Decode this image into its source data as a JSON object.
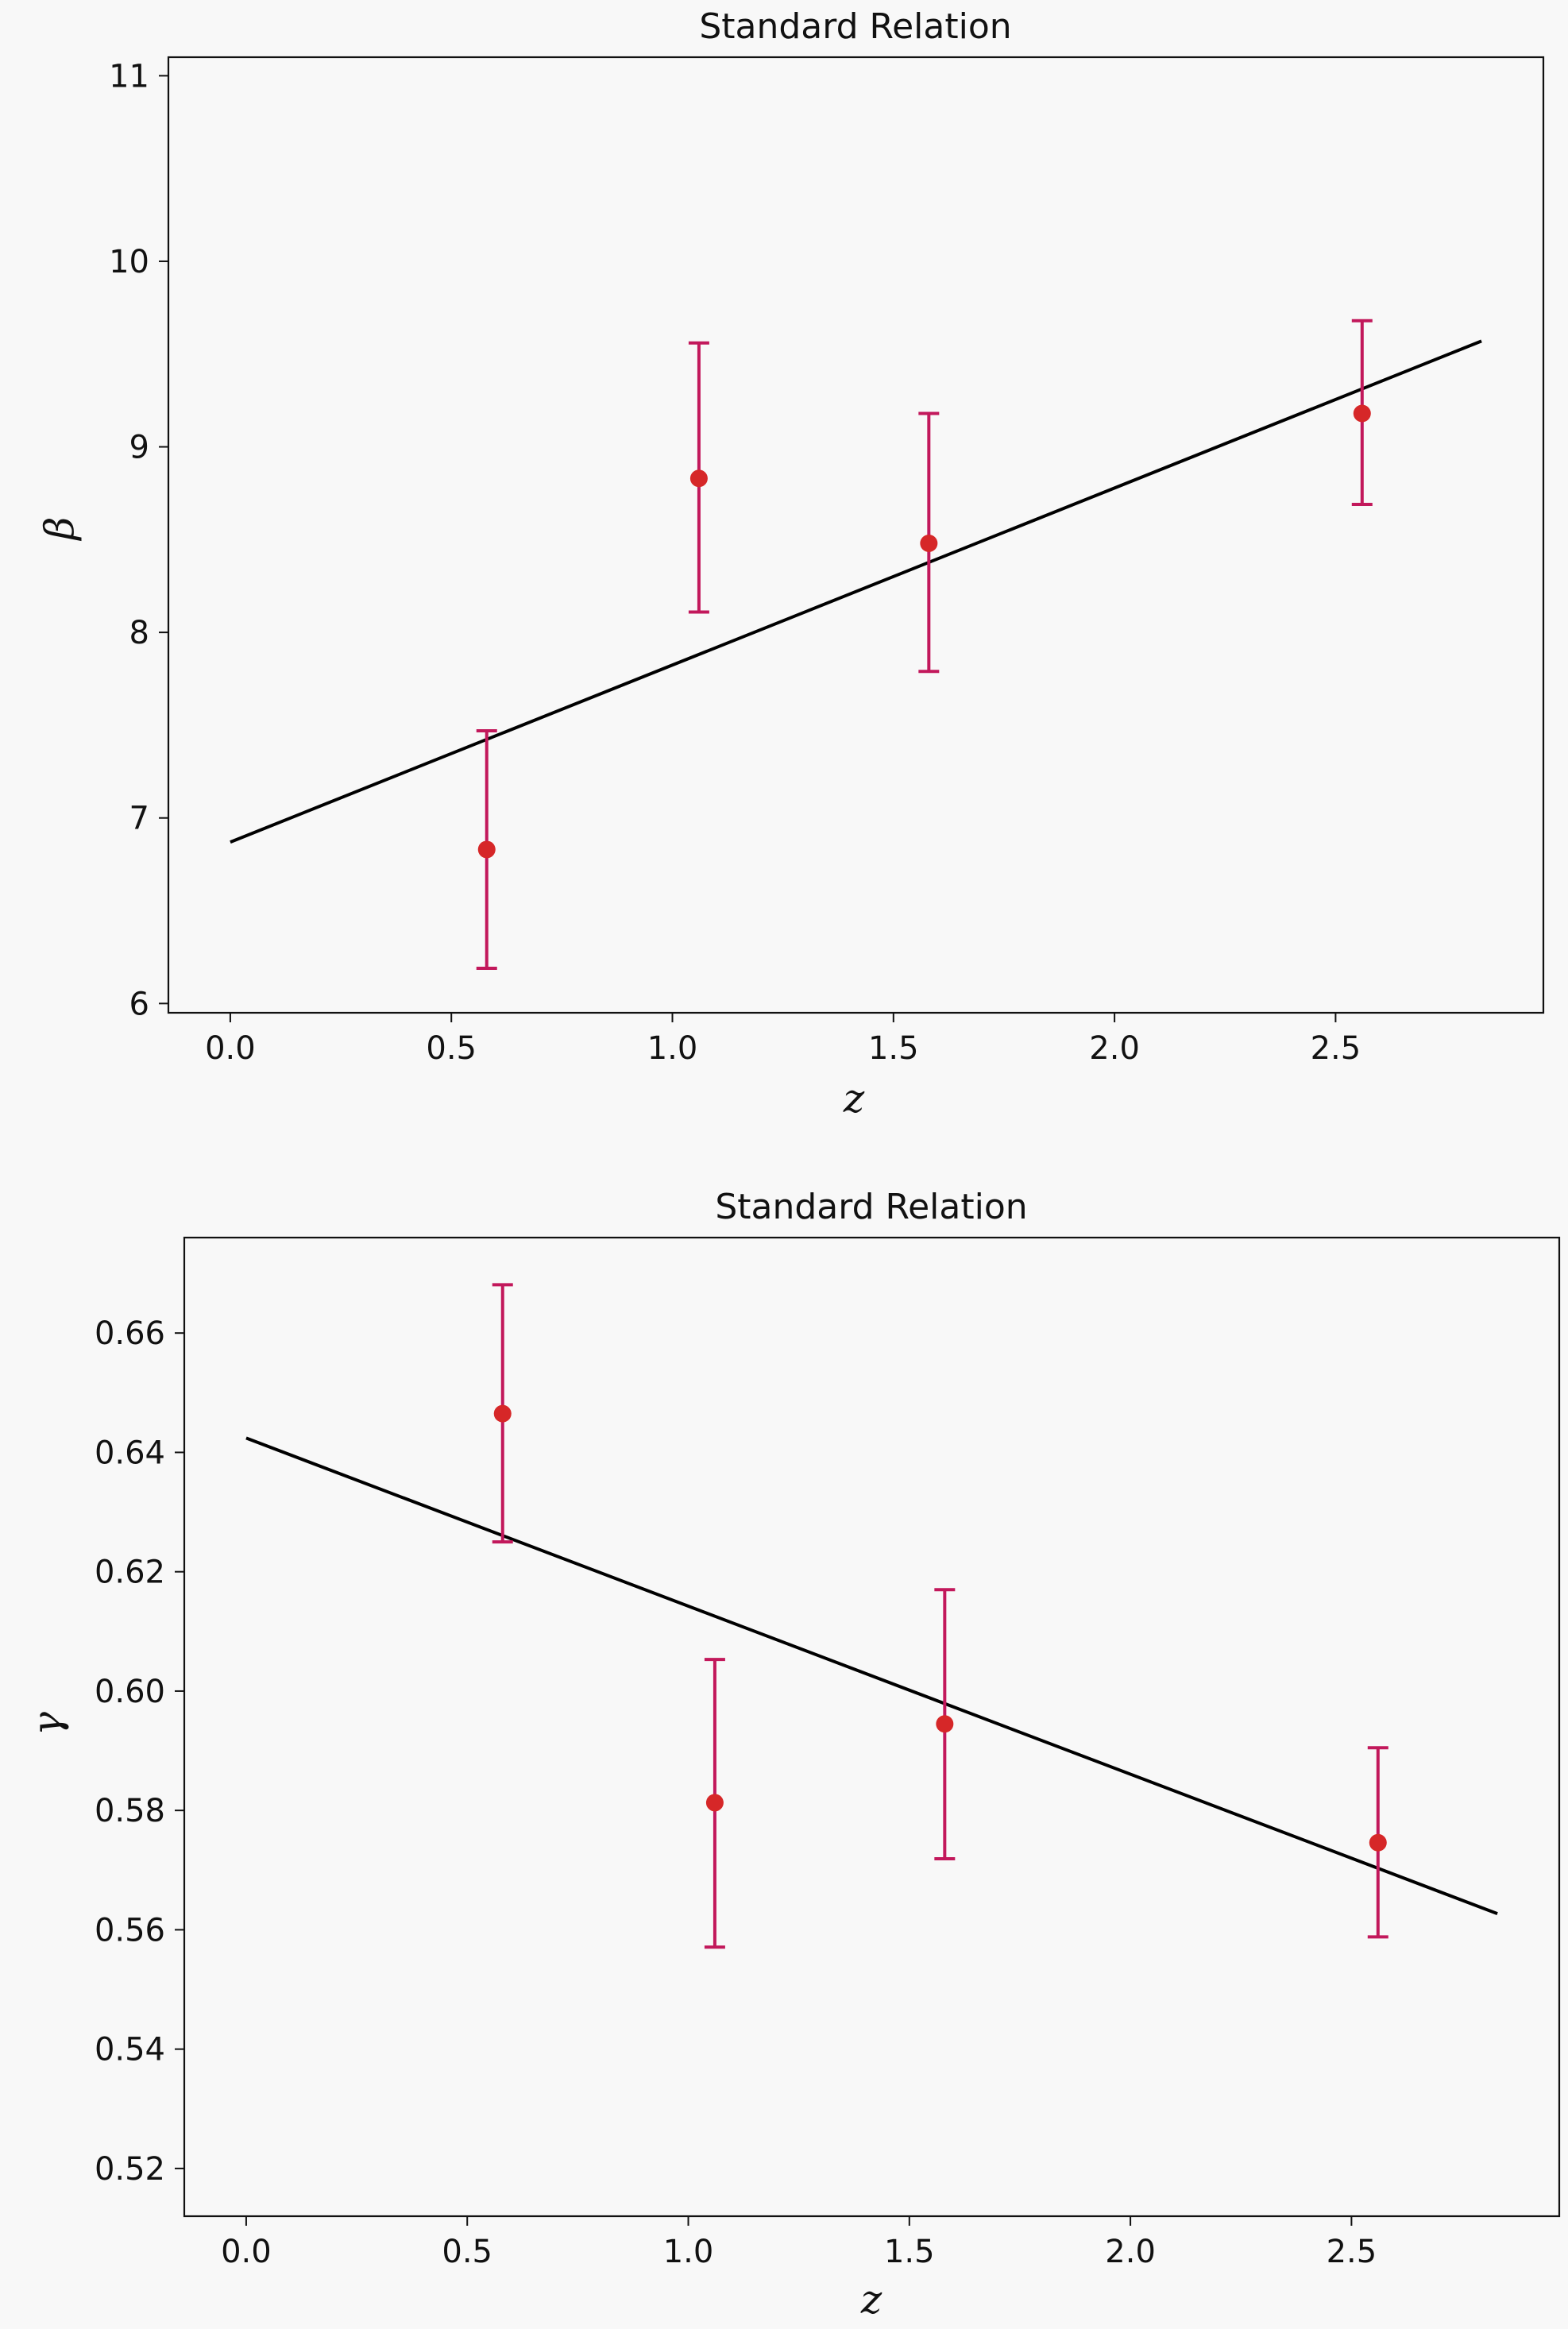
{
  "chart_data": [
    {
      "type": "scatter",
      "title": "Standard Relation",
      "xlabel": "z",
      "ylabel": "β",
      "xlim": [
        -0.14,
        2.97
      ],
      "ylim": [
        5.95,
        11.1
      ],
      "xticks": [
        0.0,
        0.5,
        1.0,
        1.5,
        2.0,
        2.5
      ],
      "xtick_labels": [
        "0.0",
        "0.5",
        "1.0",
        "1.5",
        "2.0",
        "2.5"
      ],
      "yticks": [
        6,
        7,
        8,
        9,
        10,
        11
      ],
      "ytick_labels": [
        "6",
        "7",
        "8",
        "9",
        "10",
        "11"
      ],
      "grid": false,
      "points": {
        "color": "#d62728",
        "errorbar_color": "#c2185b",
        "x": [
          0.58,
          1.06,
          1.58,
          2.56
        ],
        "y": [
          6.83,
          8.83,
          8.48,
          9.18
        ],
        "yerr_low": [
          0.64,
          0.72,
          0.69,
          0.49
        ],
        "yerr_high": [
          0.64,
          0.73,
          0.7,
          0.5
        ]
      },
      "fit_line": {
        "color": "#000000",
        "x": [
          0.0,
          2.83
        ],
        "y": [
          6.87,
          9.57
        ]
      }
    },
    {
      "type": "scatter",
      "title": "Standard Relation",
      "xlabel": "z",
      "ylabel": "γ",
      "xlim": [
        -0.14,
        2.97
      ],
      "ylim": [
        0.512,
        0.676
      ],
      "xticks": [
        0.0,
        0.5,
        1.0,
        1.5,
        2.0,
        2.5
      ],
      "xtick_labels": [
        "0.0",
        "0.5",
        "1.0",
        "1.5",
        "2.0",
        "2.5"
      ],
      "yticks": [
        0.52,
        0.54,
        0.56,
        0.58,
        0.6,
        0.62,
        0.64,
        0.66
      ],
      "ytick_labels": [
        "0.52",
        "0.54",
        "0.56",
        "0.58",
        "0.60",
        "0.62",
        "0.64",
        "0.66"
      ],
      "grid": false,
      "points": {
        "color": "#d62728",
        "errorbar_color": "#c2185b",
        "x": [
          0.58,
          1.06,
          1.58,
          2.56
        ],
        "y": [
          0.6465,
          0.5813,
          0.5945,
          0.5746
        ],
        "yerr_low": [
          0.0215,
          0.0242,
          0.0226,
          0.0158
        ],
        "yerr_high": [
          0.0216,
          0.024,
          0.0225,
          0.0159
        ]
      },
      "fit_line": {
        "color": "#000000",
        "x": [
          0.0,
          2.83
        ],
        "y": [
          0.6424,
          0.5627
        ]
      }
    }
  ]
}
